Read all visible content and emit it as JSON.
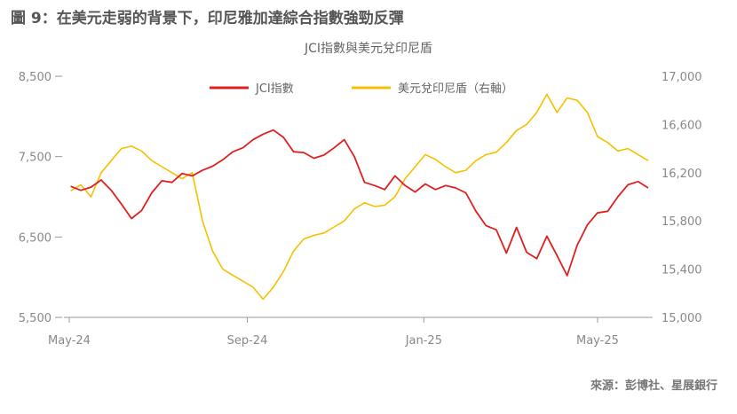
{
  "figure_title": "圖 9：在美元走弱的背景下，印尼雅加達綜合指數強勁反彈",
  "source": "來源：彭博社、星展銀行",
  "chart_data": {
    "type": "line",
    "title": "JCI指數與美元兌印尼盾",
    "x_ticks": [
      "May-24",
      "Sep-24",
      "Jan-25",
      "May-25"
    ],
    "y_left": {
      "ticks": [
        "5,500",
        "6,500",
        "7,500",
        "8,500"
      ],
      "ylim": [
        5500,
        8500
      ]
    },
    "y_right": {
      "ticks": [
        "15,000",
        "15,400",
        "15,800",
        "16,200",
        "16,600",
        "17,000"
      ],
      "ylim": [
        15000,
        17000
      ]
    },
    "legend_position": "top-center",
    "grid": false,
    "x_dates": [
      "2024-05-02",
      "2024-05-09",
      "2024-05-16",
      "2024-05-23",
      "2024-05-30",
      "2024-06-06",
      "2024-06-13",
      "2024-06-20",
      "2024-06-27",
      "2024-07-04",
      "2024-07-11",
      "2024-07-18",
      "2024-07-25",
      "2024-08-01",
      "2024-08-08",
      "2024-08-15",
      "2024-08-22",
      "2024-08-29",
      "2024-09-05",
      "2024-09-12",
      "2024-09-19",
      "2024-09-26",
      "2024-10-03",
      "2024-10-10",
      "2024-10-17",
      "2024-10-24",
      "2024-10-31",
      "2024-11-07",
      "2024-11-14",
      "2024-11-21",
      "2024-11-28",
      "2024-12-05",
      "2024-12-12",
      "2024-12-19",
      "2024-12-26",
      "2025-01-02",
      "2025-01-09",
      "2025-01-16",
      "2025-01-23",
      "2025-01-30",
      "2025-02-06",
      "2025-02-13",
      "2025-02-20",
      "2025-02-27",
      "2025-03-06",
      "2025-03-13",
      "2025-03-20",
      "2025-03-27",
      "2025-04-03",
      "2025-04-10",
      "2025-04-17",
      "2025-04-24",
      "2025-05-01",
      "2025-05-08",
      "2025-05-15",
      "2025-05-22",
      "2025-05-29",
      "2025-06-05"
    ],
    "series": [
      {
        "name": "JCI指數",
        "axis": "left",
        "color": "#e02020",
        "values": [
          7130,
          7080,
          7120,
          7210,
          7080,
          6910,
          6730,
          6830,
          7050,
          7200,
          7180,
          7290,
          7260,
          7330,
          7380,
          7460,
          7560,
          7610,
          7710,
          7780,
          7830,
          7740,
          7560,
          7550,
          7480,
          7520,
          7610,
          7710,
          7500,
          7180,
          7140,
          7090,
          7260,
          7140,
          7060,
          7160,
          7090,
          7140,
          7110,
          7050,
          6820,
          6640,
          6590,
          6300,
          6620,
          6310,
          6230,
          6510,
          6270,
          6020,
          6400,
          6650,
          6800,
          6820,
          7000,
          7150,
          7190,
          7110
        ]
      },
      {
        "name": "美元兌印尼盾（右軸）",
        "axis": "right",
        "color": "#f5c000",
        "values": [
          16050,
          16100,
          16000,
          16200,
          16300,
          16400,
          16420,
          16380,
          16300,
          16250,
          16200,
          16150,
          16200,
          15800,
          15550,
          15400,
          15350,
          15300,
          15250,
          15150,
          15250,
          15380,
          15550,
          15650,
          15680,
          15700,
          15750,
          15800,
          15900,
          15950,
          15920,
          15930,
          16000,
          16150,
          16250,
          16350,
          16310,
          16250,
          16200,
          16220,
          16300,
          16350,
          16370,
          16450,
          16550,
          16600,
          16700,
          16850,
          16700,
          16820,
          16800,
          16700,
          16500,
          16450,
          16380,
          16400,
          16350,
          16300
        ]
      }
    ]
  }
}
